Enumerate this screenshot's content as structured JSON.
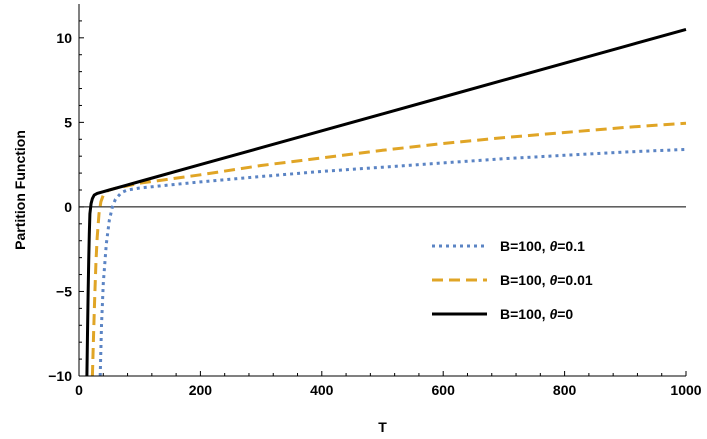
{
  "chart_data": {
    "type": "line",
    "title": "",
    "xlabel": "T",
    "ylabel": "Partition Function",
    "xlim": [
      0,
      1000
    ],
    "ylim": [
      -10,
      12
    ],
    "xticks": [
      0,
      200,
      400,
      600,
      800,
      1000
    ],
    "yticks": [
      -10,
      -5,
      0,
      5,
      10
    ],
    "xtick_labels": [
      "0",
      "200",
      "400",
      "600",
      "800",
      "1000"
    ],
    "ytick_labels": [
      "-10",
      "-5",
      "0",
      "5",
      "10"
    ],
    "zero_line": true,
    "grid": false,
    "legend_position": "lower-right",
    "series": [
      {
        "name": "B=100, θ=0.1",
        "legend_prefix": "B=100, ",
        "legend_symbol": "θ",
        "legend_suffix": "=0.1",
        "color": "#5b84c4",
        "style": "dotted",
        "x": [
          35,
          37,
          40,
          45,
          50,
          55,
          60,
          70,
          80,
          100,
          150,
          200,
          300,
          400,
          500,
          600,
          700,
          800,
          900,
          1000
        ],
        "y": [
          -10,
          -7,
          -4.5,
          -2.2,
          -0.8,
          0.0,
          0.45,
          0.85,
          1.0,
          1.12,
          1.3,
          1.48,
          1.8,
          2.1,
          2.35,
          2.6,
          2.85,
          3.05,
          3.25,
          3.4
        ]
      },
      {
        "name": "B=100, θ=0.01",
        "legend_prefix": "B=100, ",
        "legend_symbol": "θ",
        "legend_suffix": "=0.01",
        "color": "#e0a526",
        "style": "dashed",
        "x": [
          22,
          24,
          26,
          28,
          30,
          33,
          36,
          40,
          45,
          50,
          60,
          80,
          100,
          150,
          200,
          300,
          400,
          500,
          600,
          700,
          800,
          900,
          1000
        ],
        "y": [
          -10,
          -7.5,
          -5.2,
          -3.2,
          -1.8,
          -0.4,
          0.3,
          0.7,
          0.9,
          1.0,
          1.1,
          1.25,
          1.4,
          1.65,
          1.9,
          2.45,
          2.9,
          3.35,
          3.75,
          4.1,
          4.4,
          4.7,
          4.95
        ]
      },
      {
        "name": "B=100, θ=0",
        "legend_prefix": "B=100, ",
        "legend_symbol": "θ",
        "legend_suffix": "=0",
        "color": "#000000",
        "style": "solid",
        "x": [
          13,
          14,
          15,
          16,
          17,
          18,
          20,
          22,
          25,
          30,
          40,
          50,
          100,
          200,
          300,
          400,
          500,
          600,
          700,
          800,
          900,
          1000
        ],
        "y": [
          -10,
          -7.5,
          -5.2,
          -3.2,
          -1.6,
          -0.4,
          0.2,
          0.5,
          0.7,
          0.8,
          0.9,
          1.0,
          1.5,
          2.5,
          3.5,
          4.5,
          5.5,
          6.5,
          7.5,
          8.5,
          9.5,
          10.5
        ]
      }
    ]
  }
}
